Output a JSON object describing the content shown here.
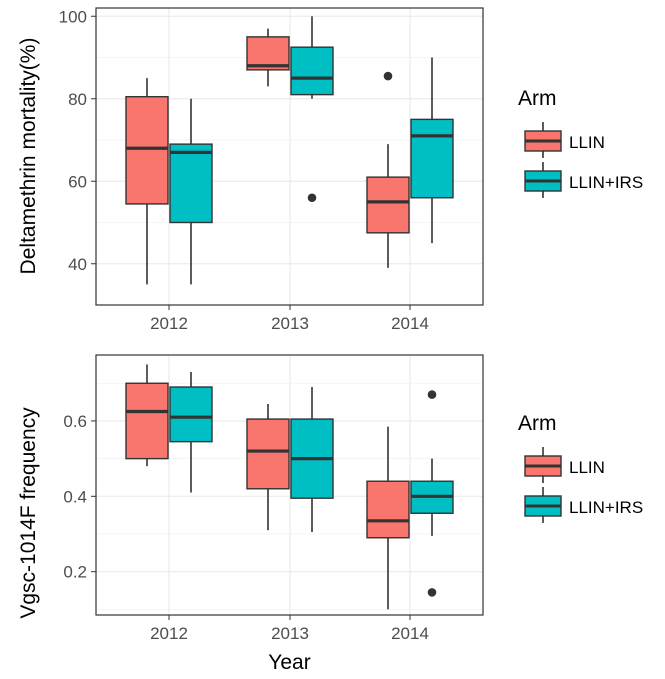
{
  "chart_data": [
    {
      "type": "boxplot",
      "ylabel": "Deltamethrin mortality(%)",
      "xlabel": "",
      "categories": [
        "2012",
        "2013",
        "2014"
      ],
      "ylim": [
        30,
        102
      ],
      "yticks": [
        40,
        60,
        80,
        100
      ],
      "grid": true,
      "legend": {
        "title": "Arm",
        "position": "right"
      },
      "series": [
        {
          "name": "LLIN",
          "color": "#F8766D",
          "boxes": [
            {
              "min": 35,
              "q1": 54.5,
              "median": 68,
              "q3": 80.5,
              "max": 85,
              "outliers": []
            },
            {
              "min": 83,
              "q1": 87,
              "median": 88,
              "q3": 95,
              "max": 97,
              "outliers": []
            },
            {
              "min": 39,
              "q1": 47.5,
              "median": 55,
              "q3": 61,
              "max": 69,
              "outliers": [
                85.5
              ]
            }
          ]
        },
        {
          "name": "LLIN+IRS",
          "color": "#00BFC4",
          "boxes": [
            {
              "min": 35,
              "q1": 50,
              "median": 67,
              "q3": 69,
              "max": 80,
              "outliers": []
            },
            {
              "min": 80,
              "q1": 81,
              "median": 85,
              "q3": 92.5,
              "max": 100,
              "outliers": [
                56
              ]
            },
            {
              "min": 45,
              "q1": 56,
              "median": 71,
              "q3": 75,
              "max": 90,
              "outliers": []
            }
          ]
        }
      ]
    },
    {
      "type": "boxplot",
      "ylabel": "Vgsc-1014F frequency",
      "xlabel": "Year",
      "categories": [
        "2012",
        "2013",
        "2014"
      ],
      "ylim": [
        0.085,
        0.775
      ],
      "yticks": [
        0.2,
        0.4,
        0.6
      ],
      "grid": true,
      "legend": {
        "title": "Arm",
        "position": "right"
      },
      "series": [
        {
          "name": "LLIN",
          "color": "#F8766D",
          "boxes": [
            {
              "min": 0.48,
              "q1": 0.5,
              "median": 0.625,
              "q3": 0.7,
              "max": 0.75,
              "outliers": []
            },
            {
              "min": 0.31,
              "q1": 0.42,
              "median": 0.52,
              "q3": 0.605,
              "max": 0.645,
              "outliers": []
            },
            {
              "min": 0.1,
              "q1": 0.29,
              "median": 0.335,
              "q3": 0.44,
              "max": 0.585,
              "outliers": []
            }
          ]
        },
        {
          "name": "LLIN+IRS",
          "color": "#00BFC4",
          "boxes": [
            {
              "min": 0.41,
              "q1": 0.545,
              "median": 0.61,
              "q3": 0.69,
              "max": 0.73,
              "outliers": []
            },
            {
              "min": 0.305,
              "q1": 0.395,
              "median": 0.5,
              "q3": 0.605,
              "max": 0.69,
              "outliers": []
            },
            {
              "min": 0.295,
              "q1": 0.355,
              "median": 0.4,
              "q3": 0.44,
              "max": 0.5,
              "outliers": [
                0.67,
                0.145
              ]
            }
          ]
        }
      ]
    }
  ]
}
